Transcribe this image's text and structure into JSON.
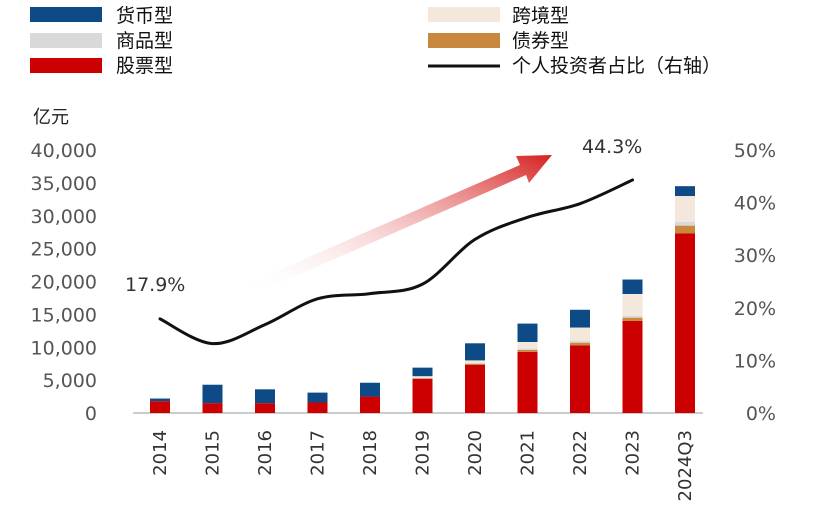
{
  "chart_data": {
    "type": "bar",
    "stacked": true,
    "categories": [
      "2014",
      "2015",
      "2016",
      "2017",
      "2018",
      "2019",
      "2020",
      "2021",
      "2022",
      "2023",
      "2024Q3"
    ],
    "y_unit_label": "亿元",
    "ylim": [
      0,
      40000
    ],
    "y_ticks": [
      "40,000",
      "35,000",
      "30,000",
      "25,000",
      "20,000",
      "15,000",
      "10,000",
      "5,000",
      "0"
    ],
    "y2lim": [
      0,
      50
    ],
    "y2_ticks": [
      "50%",
      "40%",
      "30%",
      "20%",
      "10%",
      "0%"
    ],
    "series": [
      {
        "name": "股票型",
        "color": "#cc0000",
        "values": [
          1800,
          1500,
          1500,
          1600,
          2500,
          5200,
          7300,
          9300,
          10300,
          14000,
          27300
        ]
      },
      {
        "name": "债券型",
        "color": "#c8893f",
        "values": [
          0,
          0,
          0,
          0,
          0,
          100,
          200,
          300,
          400,
          500,
          1200
        ]
      },
      {
        "name": "商品型",
        "color": "#d9d9d9",
        "values": [
          0,
          0,
          0,
          0,
          0,
          0,
          100,
          200,
          300,
          300,
          600
        ]
      },
      {
        "name": "跨境型",
        "color": "#f4e7db",
        "values": [
          0,
          0,
          0,
          0,
          0,
          300,
          400,
          1000,
          2000,
          3300,
          3900
        ]
      },
      {
        "name": "货币型",
        "color": "#0d4a86",
        "values": [
          400,
          2800,
          2100,
          1500,
          2100,
          1300,
          2600,
          2800,
          2700,
          2200,
          1500
        ]
      }
    ],
    "line_series": {
      "name": "个人投资者占比（右轴）",
      "color": "#111111",
      "values": [
        17.9,
        13.2,
        16.8,
        21.7,
        22.7,
        24.5,
        33.0,
        37.2,
        39.8,
        44.3
      ]
    },
    "annotations": [
      "17.9%",
      "44.3%"
    ],
    "legend": {
      "left": [
        "货币型",
        "商品型",
        "股票型"
      ],
      "right": [
        "跨境型",
        "债券型",
        "个人投资者占比（右轴）"
      ]
    }
  }
}
